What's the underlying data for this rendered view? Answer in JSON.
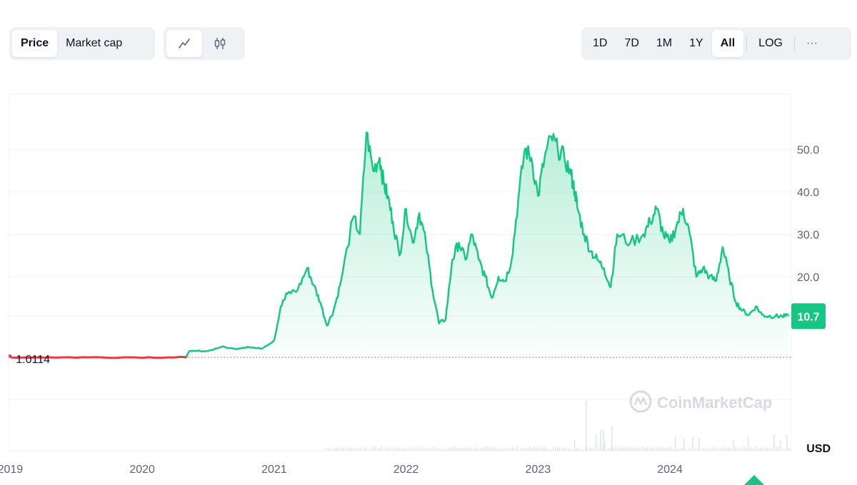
{
  "toolbar": {
    "metric_tabs": [
      {
        "label": "Price",
        "active": true
      },
      {
        "label": "Market cap",
        "active": false
      }
    ],
    "chart_type_icons": [
      {
        "icon": "line-chart-icon",
        "active": true
      },
      {
        "icon": "candlestick-icon",
        "active": false
      }
    ],
    "ranges": [
      {
        "label": "1D",
        "active": false
      },
      {
        "label": "7D",
        "active": false
      },
      {
        "label": "1M",
        "active": false
      },
      {
        "label": "1Y",
        "active": false
      },
      {
        "label": "All",
        "active": true
      }
    ],
    "log_label": "LOG",
    "more_label": "···"
  },
  "watermark": "CoinMarketCap",
  "colors": {
    "line_up": "#16c784",
    "line_down": "#ea3943",
    "fill_top": "#16c784",
    "grid": "#eff2f5",
    "axis_text": "#58667e",
    "price_badge_bg": "#16c784"
  },
  "chart_data": {
    "type": "area",
    "currency": "USD",
    "reference_label": "1.0114",
    "reference_value": 1.0114,
    "current_label": "10.7",
    "current_value": 10.7,
    "y_ticks": [
      50.0,
      40.0,
      30.0,
      20.0,
      10.7
    ],
    "y_tick_labels": [
      "50.0",
      "40.0",
      "30.0",
      "20.0",
      "10.7"
    ],
    "x_tick_labels": [
      "2019",
      "2020",
      "2021",
      "2022",
      "2023",
      "2024"
    ],
    "ylim": [
      -21,
      63
    ],
    "xlim": [
      2018.987,
      2024.92
    ],
    "series": [
      {
        "x": [
          2019.0,
          2019.3,
          2019.6,
          2019.9,
          2020.2,
          2020.33,
          2020.36,
          2020.5,
          2020.6,
          2020.7,
          2020.8,
          2020.9,
          2021.0,
          2021.05,
          2021.1,
          2021.18,
          2021.25,
          2021.3,
          2021.35,
          2021.4,
          2021.45,
          2021.5,
          2021.6,
          2021.65,
          2021.7,
          2021.75,
          2021.8,
          2021.83,
          2021.86,
          2021.9,
          2021.95,
          2022.0,
          2022.05,
          2022.1,
          2022.15,
          2022.2,
          2022.25,
          2022.3,
          2022.35,
          2022.4,
          2022.45,
          2022.5,
          2022.55,
          2022.6,
          2022.65,
          2022.7,
          2022.75,
          2022.8,
          2022.85,
          2022.9,
          2022.95,
          2023.0,
          2023.05,
          2023.1,
          2023.15,
          2023.2,
          2023.25,
          2023.28,
          2023.3,
          2023.35,
          2023.4,
          2023.45,
          2023.5,
          2023.55,
          2023.6,
          2023.7,
          2023.8,
          2023.85,
          2023.9,
          2023.95,
          2024.0,
          2024.05,
          2024.1,
          2024.15,
          2024.2,
          2024.25,
          2024.3,
          2024.35,
          2024.4,
          2024.45,
          2024.5,
          2024.55,
          2024.6,
          2024.65,
          2024.7,
          2024.75,
          2024.8,
          2024.85,
          2024.9
        ],
        "y": [
          1.0,
          1.0,
          1.0,
          1.0,
          1.0,
          1.0,
          2.5,
          2.5,
          3.5,
          3.0,
          3.5,
          3.0,
          5.0,
          13.0,
          16.0,
          17.0,
          22.0,
          18.0,
          14.0,
          8.5,
          12.0,
          18.0,
          34.0,
          30.0,
          54.0,
          45.0,
          48.0,
          42.0,
          39.0,
          33.0,
          25.0,
          36.0,
          28.0,
          35.0,
          28.0,
          17.0,
          9.0,
          10.0,
          24.0,
          28.0,
          24.0,
          30.0,
          24.0,
          20.0,
          15.0,
          20.0,
          19.0,
          24.0,
          38.0,
          50.0,
          48.0,
          39.0,
          48.0,
          53.0,
          50.0,
          48.0,
          44.0,
          40.0,
          36.0,
          30.0,
          26.0,
          24.0,
          22.0,
          17.5,
          30.0,
          28.0,
          30.0,
          33.0,
          36.0,
          30.0,
          28.0,
          32.0,
          36.0,
          30.0,
          20.0,
          22.0,
          20.0,
          19.0,
          27.0,
          20.0,
          14.0,
          12.0,
          11.0,
          13.0,
          11.0,
          10.7,
          10.7,
          10.7,
          10.7
        ]
      }
    ]
  }
}
